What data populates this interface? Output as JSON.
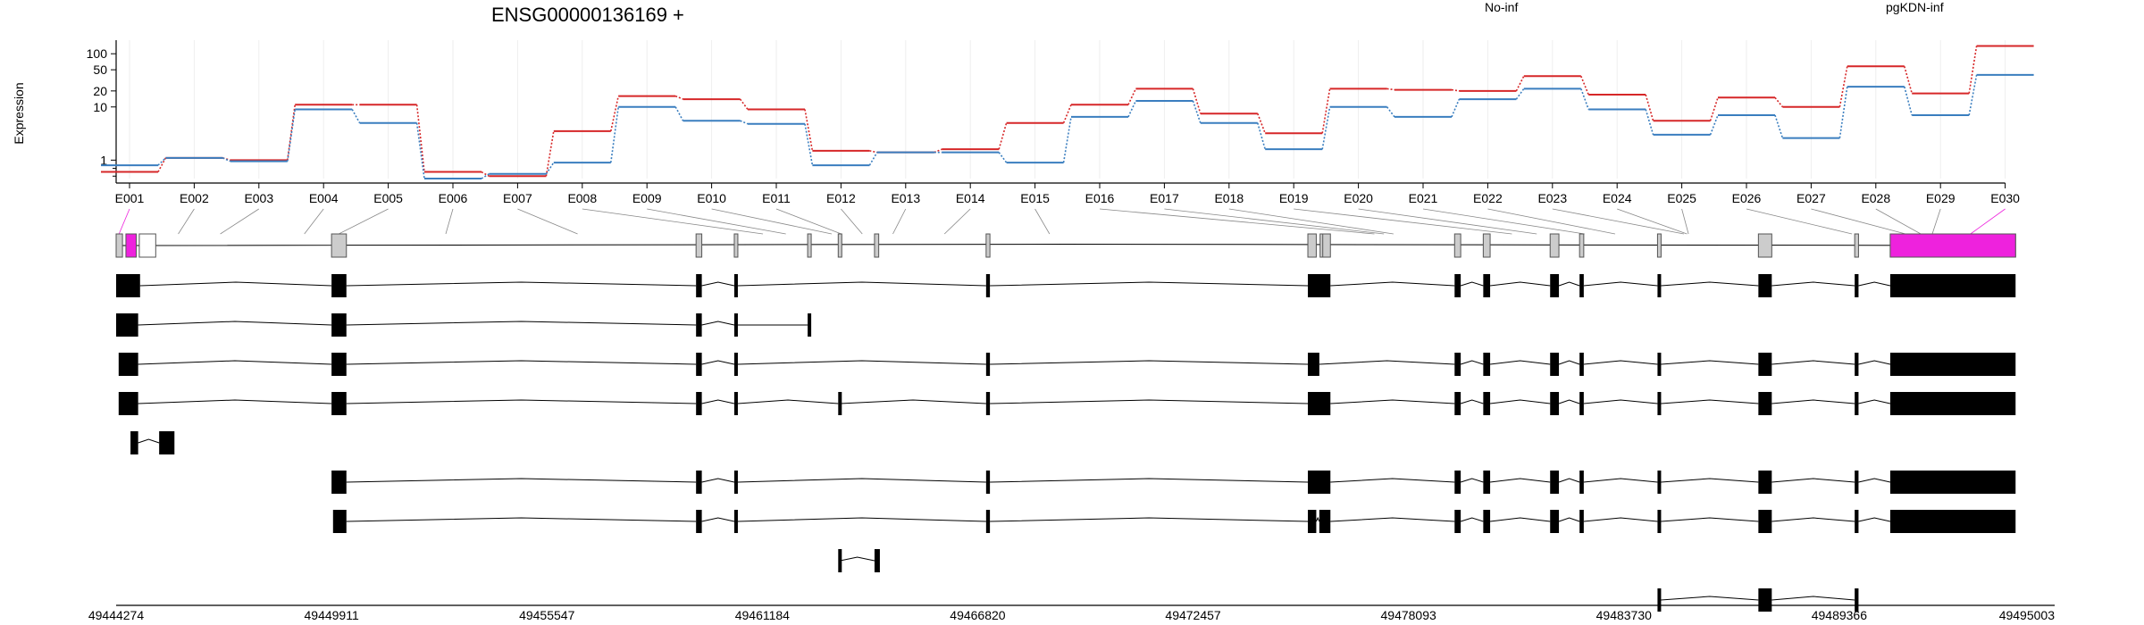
{
  "chart_data": {
    "type": "line",
    "title": "ENSG00000136169 +",
    "ylabel": "Expression",
    "xlabel": "",
    "y_scale": "log",
    "y_ticks": [
      1,
      10,
      20,
      50,
      100
    ],
    "grid": true,
    "legend_placement": "top-right",
    "categories": [
      "E001",
      "E002",
      "E003",
      "E004",
      "E005",
      "E006",
      "E007",
      "E008",
      "E009",
      "E010",
      "E011",
      "E012",
      "E013",
      "E014",
      "E015",
      "E016",
      "E017",
      "E018",
      "E019",
      "E020",
      "E021",
      "E022",
      "E023",
      "E024",
      "E025",
      "E026",
      "E027",
      "E028",
      "E029",
      "E030"
    ],
    "series": [
      {
        "name": "No-inf",
        "color": "#d62728",
        "values": [
          0.6,
          1.1,
          1.0,
          11,
          11,
          0.6,
          0.5,
          3.5,
          16,
          14,
          9,
          1.5,
          1.4,
          1.6,
          5,
          11,
          22,
          7.5,
          3.2,
          22,
          21,
          20,
          38,
          17,
          5.5,
          15,
          10,
          58,
          18,
          140
        ]
      },
      {
        "name": "pgKDN-inf",
        "color": "#3a7ebf",
        "values": [
          0.8,
          1.1,
          0.95,
          9,
          5,
          0.45,
          0.55,
          0.9,
          10,
          5.5,
          4.8,
          0.8,
          1.4,
          1.4,
          0.9,
          6.5,
          13,
          5,
          1.6,
          10,
          6.5,
          14,
          22,
          9,
          3,
          7,
          2.6,
          24,
          7,
          40
        ]
      }
    ],
    "genomic_coords": [
      "49444274",
      "49449911",
      "49455547",
      "49461184",
      "49466820",
      "49472457",
      "49478093",
      "49483730",
      "49489366",
      "49495003"
    ],
    "exon_label_positions": [
      49444350,
      49445900,
      49447000,
      49449200,
      49450100,
      49452900,
      49456350,
      49461200,
      49461800,
      49463000,
      49463250,
      49463800,
      49464600,
      49465950,
      49468700,
      49477200,
      49477450,
      49477700,
      49480800,
      49481450,
      49482700,
      49483500,
      49485300,
      49485380,
      49485420,
      49489700,
      49491100,
      49491500,
      49491800,
      49492800
    ],
    "gene_model": {
      "exons": [
        [
          49444274,
          49444440
        ],
        [
          49444880,
          49445310
        ],
        [
          49449911,
          49450300
        ],
        [
          49459450,
          49459600
        ],
        [
          49460450,
          49460540
        ],
        [
          49462370,
          49462410
        ],
        [
          49463170,
          49463220
        ],
        [
          49464120,
          49464230
        ],
        [
          49467040,
          49467140
        ],
        [
          49475460,
          49475680
        ],
        [
          49475780,
          49475830
        ],
        [
          49475850,
          49476050
        ],
        [
          49479300,
          49479460
        ],
        [
          49480050,
          49480230
        ],
        [
          49481800,
          49482030
        ],
        [
          49482570,
          49482680
        ],
        [
          49484610,
          49484700
        ],
        [
          49487250,
          49487600
        ],
        [
          49489770,
          49489870
        ],
        [
          49490700,
          49493980
        ]
      ],
      "highlight_exons": [
        [
          49444530,
          49444800
        ],
        [
          49490700,
          49493980
        ]
      ],
      "highlight_color": "#ee22dd"
    },
    "transcripts": [
      {
        "exons": [
          [
            49444274,
            49444900
          ],
          [
            49449911,
            49450300
          ],
          [
            49459450,
            49459600
          ],
          [
            49460450,
            49460540
          ],
          [
            49467040,
            49467140
          ],
          [
            49475460,
            49476050
          ],
          [
            49479300,
            49479460
          ],
          [
            49480050,
            49480230
          ],
          [
            49481800,
            49482030
          ],
          [
            49482570,
            49482680
          ],
          [
            49484610,
            49484700
          ],
          [
            49487250,
            49487600
          ],
          [
            49489770,
            49489870
          ],
          [
            49490700,
            49493980
          ]
        ]
      },
      {
        "exons": [
          [
            49444274,
            49444850
          ],
          [
            49449911,
            49450300
          ],
          [
            49459450,
            49459600
          ],
          [
            49460450,
            49460540
          ],
          [
            49462370,
            49462410
          ]
        ]
      },
      {
        "exons": [
          [
            49444340,
            49444850
          ],
          [
            49449911,
            49450300
          ],
          [
            49459450,
            49459600
          ],
          [
            49460450,
            49460540
          ],
          [
            49467040,
            49467140
          ],
          [
            49475460,
            49475760
          ],
          [
            49479300,
            49479460
          ],
          [
            49480050,
            49480230
          ],
          [
            49481800,
            49482030
          ],
          [
            49482570,
            49482680
          ],
          [
            49484610,
            49484700
          ],
          [
            49487250,
            49487600
          ],
          [
            49489770,
            49489870
          ],
          [
            49490700,
            49493980
          ]
        ]
      },
      {
        "exons": [
          [
            49444340,
            49444850
          ],
          [
            49449911,
            49450300
          ],
          [
            49459450,
            49459600
          ],
          [
            49460450,
            49460540
          ],
          [
            49463170,
            49463220
          ],
          [
            49467040,
            49467140
          ],
          [
            49475460,
            49476050
          ],
          [
            49479300,
            49479460
          ],
          [
            49480050,
            49480230
          ],
          [
            49481800,
            49482030
          ],
          [
            49482570,
            49482680
          ],
          [
            49484610,
            49484700
          ],
          [
            49487250,
            49487600
          ],
          [
            49489770,
            49489870
          ],
          [
            49490700,
            49493980
          ]
        ]
      },
      {
        "exons": [
          [
            49444650,
            49444850
          ],
          [
            49445400,
            49445800
          ]
        ]
      },
      {
        "exons": [
          [
            49449911,
            49450300
          ],
          [
            49459450,
            49459600
          ],
          [
            49460450,
            49460540
          ],
          [
            49467040,
            49467140
          ],
          [
            49475460,
            49476050
          ],
          [
            49479300,
            49479460
          ],
          [
            49480050,
            49480230
          ],
          [
            49481800,
            49482030
          ],
          [
            49482570,
            49482680
          ],
          [
            49484610,
            49484700
          ],
          [
            49487250,
            49487600
          ],
          [
            49489770,
            49489870
          ],
          [
            49490700,
            49493980
          ]
        ]
      },
      {
        "exons": [
          [
            49449950,
            49450300
          ],
          [
            49459450,
            49459600
          ],
          [
            49460450,
            49460540
          ],
          [
            49467040,
            49467140
          ],
          [
            49475460,
            49475680
          ],
          [
            49475760,
            49476050
          ],
          [
            49479300,
            49479460
          ],
          [
            49480050,
            49480230
          ],
          [
            49481800,
            49482030
          ],
          [
            49482570,
            49482680
          ],
          [
            49484610,
            49484700
          ],
          [
            49487250,
            49487600
          ],
          [
            49489770,
            49489870
          ],
          [
            49490700,
            49493980
          ]
        ]
      },
      {
        "exons": [
          [
            49463170,
            49463220
          ],
          [
            49464120,
            49464260
          ]
        ]
      },
      {
        "exons": [
          [
            49484610,
            49484700
          ],
          [
            49487250,
            49487600
          ],
          [
            49489770,
            49489870
          ]
        ]
      }
    ]
  }
}
